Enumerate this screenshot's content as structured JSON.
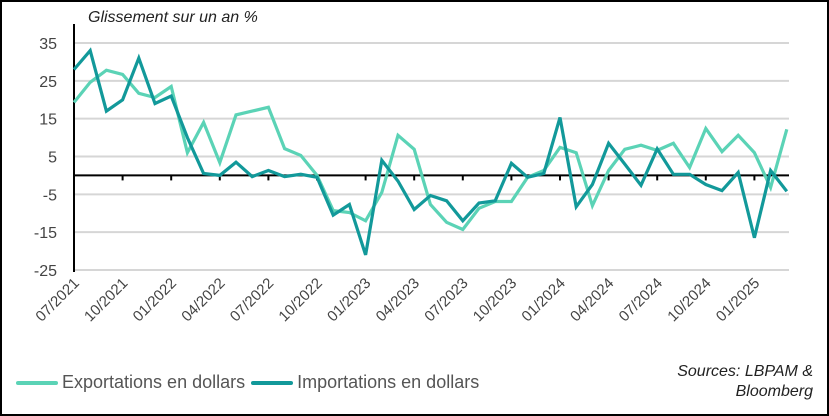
{
  "chart_data": {
    "type": "line",
    "title": "Glissement sur un an %",
    "xlabel": "",
    "ylabel": "Glissement sur un an %",
    "ylim": [
      -25,
      35
    ],
    "yticks": [
      35,
      25,
      15,
      5,
      -5,
      -15,
      -25
    ],
    "grid": true,
    "legend_position": "bottom",
    "x": [
      "07/2021",
      "08/2021",
      "09/2021",
      "10/2021",
      "11/2021",
      "12/2021",
      "01/2022",
      "02/2022",
      "03/2022",
      "04/2022",
      "05/2022",
      "06/2022",
      "07/2022",
      "08/2022",
      "09/2022",
      "10/2022",
      "11/2022",
      "12/2022",
      "01/2023",
      "02/2023",
      "03/2023",
      "04/2023",
      "05/2023",
      "06/2023",
      "07/2023",
      "08/2023",
      "09/2023",
      "10/2023",
      "11/2023",
      "12/2023",
      "01/2024",
      "02/2024",
      "03/2024",
      "04/2024",
      "05/2024",
      "06/2024",
      "07/2024",
      "08/2024",
      "09/2024",
      "10/2024",
      "11/2024",
      "12/2024",
      "01/2025",
      "02/2025",
      "03/2025"
    ],
    "xtick_labels": [
      "07/2021",
      "10/2021",
      "01/2022",
      "04/2022",
      "07/2022",
      "10/2022",
      "01/2023",
      "04/2023",
      "07/2023",
      "10/2023",
      "01/2024",
      "04/2024",
      "07/2024",
      "10/2024",
      "01/2025"
    ],
    "series": [
      {
        "name": "Exportations en dollars",
        "color": "#5BD3B6",
        "values": [
          19.3,
          24.6,
          27.8,
          26.7,
          21.7,
          20.6,
          23.5,
          6.0,
          14.0,
          3.4,
          16.0,
          17.0,
          18.0,
          7.1,
          5.3,
          0.0,
          -9.3,
          -9.8,
          -12.0,
          -4.5,
          10.6,
          6.9,
          -7.7,
          -12.4,
          -14.3,
          -8.7,
          -6.9,
          -6.9,
          -0.5,
          1.3,
          7.4,
          6.0,
          -8.0,
          1.3,
          6.9,
          8.0,
          6.6,
          8.5,
          2.1,
          12.4,
          6.3,
          10.6,
          6.0,
          -3.2,
          12.2
        ]
      },
      {
        "name": "Importations en dollars",
        "color": "#12999A",
        "values": [
          28.0,
          33.0,
          17.0,
          20.0,
          31.0,
          19.0,
          21.0,
          10.0,
          0.5,
          0.0,
          3.5,
          -0.3,
          1.3,
          -0.3,
          0.3,
          -0.5,
          -10.5,
          -7.7,
          -21.0,
          4.0,
          -1.5,
          -9.0,
          -5.3,
          -6.7,
          -12.0,
          -7.3,
          -6.7,
          3.2,
          -0.5,
          0.5,
          15.3,
          -8.3,
          -2.4,
          8.5,
          3.0,
          -2.6,
          7.0,
          0.3,
          0.3,
          -2.4,
          -4.0,
          0.8,
          -16.5,
          1.3,
          -4.2
        ]
      }
    ],
    "annotations": [
      "Sources: LBPAM & Bloomberg"
    ]
  },
  "header": {
    "title": "Glissement sur un an %"
  },
  "legend": {
    "items": [
      {
        "label": "Exportations en dollars",
        "color": "#5BD3B6"
      },
      {
        "label": "Importations en dollars",
        "color": "#12999A"
      }
    ]
  },
  "footer": {
    "source_line1": "Sources: LBPAM &",
    "source_line2": "Bloomberg"
  }
}
